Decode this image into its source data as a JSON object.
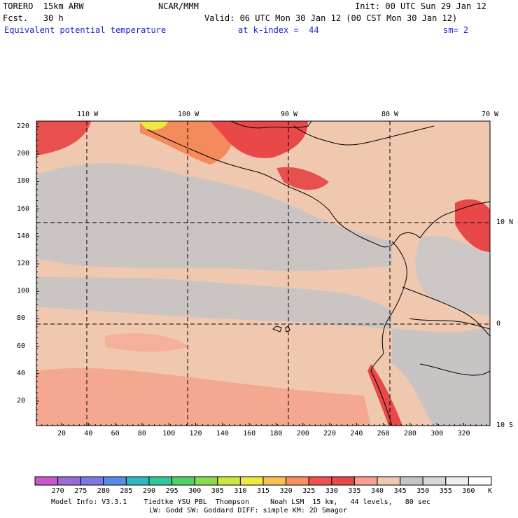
{
  "header": {
    "model": "TORERO  15km ARW",
    "org": "NCAR/MMM",
    "init": "Init: 00 UTC Sun 29 Jan 12",
    "fcst": "Fcst.   30 h",
    "valid": "Valid: 06 UTC Mon 30 Jan 12 (00 CST Mon 30 Jan 12)",
    "field": "Equivalent potential temperature",
    "level": "at k-index =  44",
    "smooth": "sm= 2"
  },
  "map": {
    "lon_labels": [
      "110 W",
      "100 W",
      "90 W",
      "80 W",
      "70 W"
    ],
    "lat_labels": [
      "10 N",
      "0",
      "10 S"
    ],
    "y_ticks": [
      "220",
      "200",
      "180",
      "160",
      "140",
      "120",
      "100",
      "80",
      "60",
      "40",
      "20"
    ],
    "x_ticks": [
      "20",
      "40",
      "60",
      "80",
      "100",
      "120",
      "140",
      "160",
      "180",
      "200",
      "220",
      "240",
      "260",
      "280",
      "300",
      "320"
    ]
  },
  "colorbar": {
    "labels": [
      "270",
      "275",
      "280",
      "285",
      "290",
      "295",
      "300",
      "305",
      "310",
      "315",
      "320",
      "325",
      "330",
      "335",
      "340",
      "345",
      "350",
      "355",
      "360"
    ],
    "unit": "K",
    "colors": [
      "#cc55cc",
      "#9a6ad8",
      "#7a78e6",
      "#5a8ae8",
      "#30b8c0",
      "#30c898",
      "#50d068",
      "#88dc50",
      "#c8e840",
      "#f0e840",
      "#f8c050",
      "#f89060",
      "#f05050",
      "#e84848",
      "#f8a090",
      "#f0c8b0",
      "#c8c4c4",
      "#d8d8d8",
      "#eeeeee",
      "#ffffff"
    ]
  },
  "footer": {
    "line1": "Model Info: V3.3.1    Tiedtke YSU PBL  Thompson     Noah LSM  15 km,   44 levels,   80 sec",
    "line2": "LW: Godd SW: Goddard DIFF: simple KM: 2D Smagor"
  }
}
